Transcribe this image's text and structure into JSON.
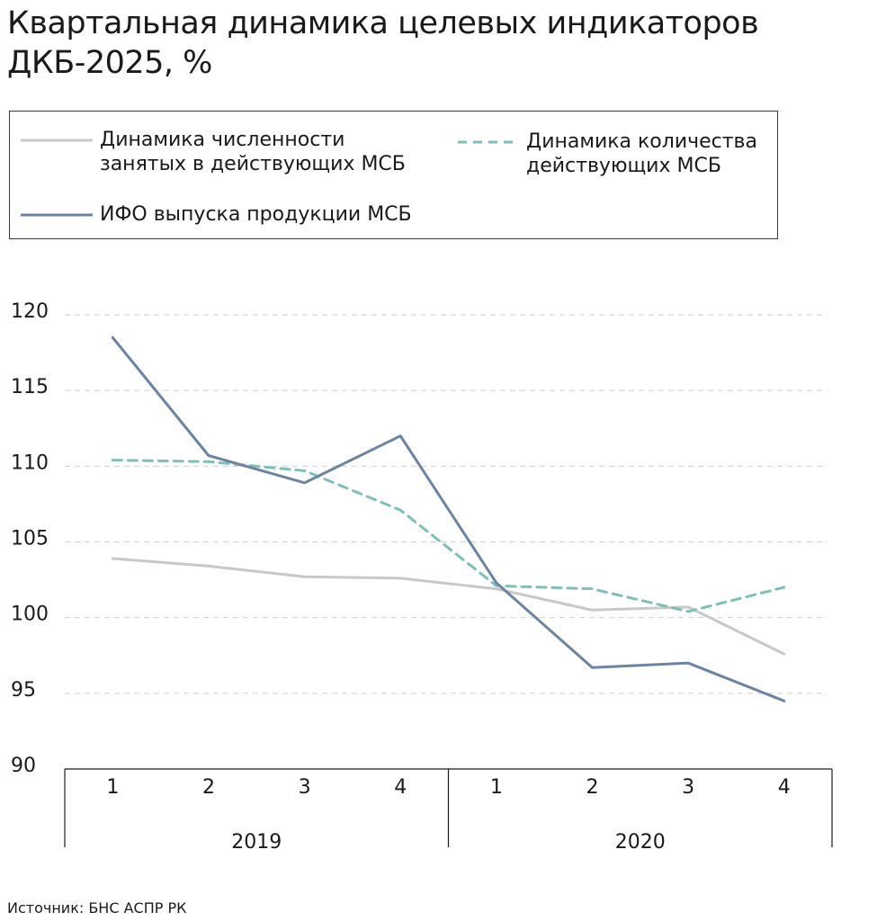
{
  "title": "Квартальная динамика целевых индикаторов ДКБ-2025, %",
  "source": "Источник: БНС АСПР РК",
  "legend": {
    "items": [
      {
        "label_line1": "Динамика численности",
        "label_line2": "занятых в действующих МСБ",
        "color": "#c8c8c8",
        "style": "solid"
      },
      {
        "label_line1": "Динамика количества",
        "label_line2": "действующих МСБ",
        "color": "#7fbfb8",
        "style": "dashed"
      },
      {
        "label_line1": "ИФО выпуска продукции МСБ",
        "label_line2": "",
        "color": "#6b84a3",
        "style": "solid"
      }
    ]
  },
  "chart_data": {
    "type": "line",
    "title": "Квартальная динамика целевых индикаторов ДКБ-2025, %",
    "categories": [
      "1",
      "2",
      "3",
      "4",
      "1",
      "2",
      "3",
      "4"
    ],
    "groups": [
      {
        "label": "2019",
        "from": 0,
        "to": 3
      },
      {
        "label": "2020",
        "from": 4,
        "to": 7
      }
    ],
    "ylim": [
      90,
      120
    ],
    "yticks": [
      90,
      95,
      100,
      105,
      110,
      115,
      120
    ],
    "grid": true,
    "series": [
      {
        "name": "Динамика численности занятых в действующих МСБ",
        "color": "#c8c8c8",
        "dash": false,
        "values": [
          103.9,
          103.4,
          102.7,
          102.6,
          101.9,
          100.5,
          100.7,
          97.6
        ]
      },
      {
        "name": "Динамика количества действующих МСБ",
        "color": "#7fbfb8",
        "dash": true,
        "values": [
          110.4,
          110.3,
          109.7,
          107.1,
          102.1,
          101.9,
          100.4,
          102.0
        ]
      },
      {
        "name": "ИФО выпуска продукции МСБ",
        "color": "#6b84a3",
        "dash": false,
        "values": [
          118.5,
          110.7,
          108.9,
          112.0,
          102.3,
          96.7,
          97.0,
          94.5
        ]
      }
    ]
  }
}
